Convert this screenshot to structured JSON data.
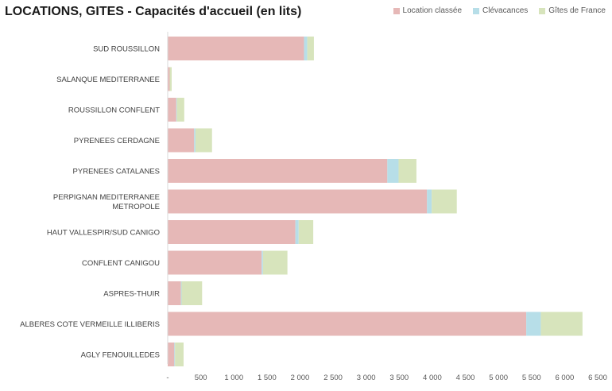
{
  "chart_data": {
    "type": "bar",
    "orientation": "horizontal",
    "stacked": true,
    "title": "LOCATIONS, GITES - Capacités d'accueil (en lits)",
    "xlabel": "",
    "ylabel": "",
    "xlim": [
      0,
      6500
    ],
    "grid": false,
    "legend_position": "top-right",
    "categories": [
      "SUD ROUSSILLON",
      "SALANQUE MEDITERRANEE",
      "ROUSSILLON CONFLENT",
      "PYRENEES CERDAGNE",
      "PYRENEES CATALANES",
      "PERPIGNAN MEDITERRANEE METROPOLE",
      "HAUT VALLESPIR/SUD CANIGO",
      "CONFLENT CANIGOU",
      "ASPRES-THUIR",
      "ALBERES COTE VERMEILLE ILLIBERIS",
      "AGLY FENOUILLEDES"
    ],
    "category_lines": [
      [
        "SUD ROUSSILLON"
      ],
      [
        "SALANQUE MEDITERRANEE"
      ],
      [
        "ROUSSILLON CONFLENT"
      ],
      [
        "PYRENEES CERDAGNE"
      ],
      [
        "PYRENEES CATALANES"
      ],
      [
        "PERPIGNAN MEDITERRANEE",
        "METROPOLE"
      ],
      [
        "HAUT VALLESPIR/SUD CANIGO"
      ],
      [
        "CONFLENT CANIGOU"
      ],
      [
        "ASPRES-THUIR"
      ],
      [
        "ALBERES COTE VERMEILLE ILLIBERIS"
      ],
      [
        "AGLY FENOUILLEDES"
      ]
    ],
    "series": [
      {
        "name": "Location classée",
        "color": "#e6b8b7",
        "values": [
          2060,
          30,
          130,
          400,
          3320,
          3920,
          1930,
          1420,
          200,
          5420,
          100
        ]
      },
      {
        "name": "Clévacances",
        "color": "#b7dee8",
        "values": [
          50,
          0,
          10,
          20,
          170,
          70,
          50,
          20,
          10,
          220,
          10
        ]
      },
      {
        "name": "Gîtes de France",
        "color": "#d7e4bc",
        "values": [
          100,
          30,
          110,
          250,
          270,
          380,
          220,
          370,
          310,
          630,
          130
        ]
      }
    ],
    "x_ticks": [
      0,
      500,
      1000,
      1500,
      2000,
      2500,
      3000,
      3500,
      4000,
      4500,
      5000,
      5500,
      6000,
      6500
    ],
    "x_tick_labels": [
      "-",
      "500",
      "1 000",
      "1 500",
      "2 000",
      "2 500",
      "3 000",
      "3 500",
      "4 000",
      "4 500",
      "5 000",
      "5 500",
      "6 000",
      "6 500"
    ]
  }
}
